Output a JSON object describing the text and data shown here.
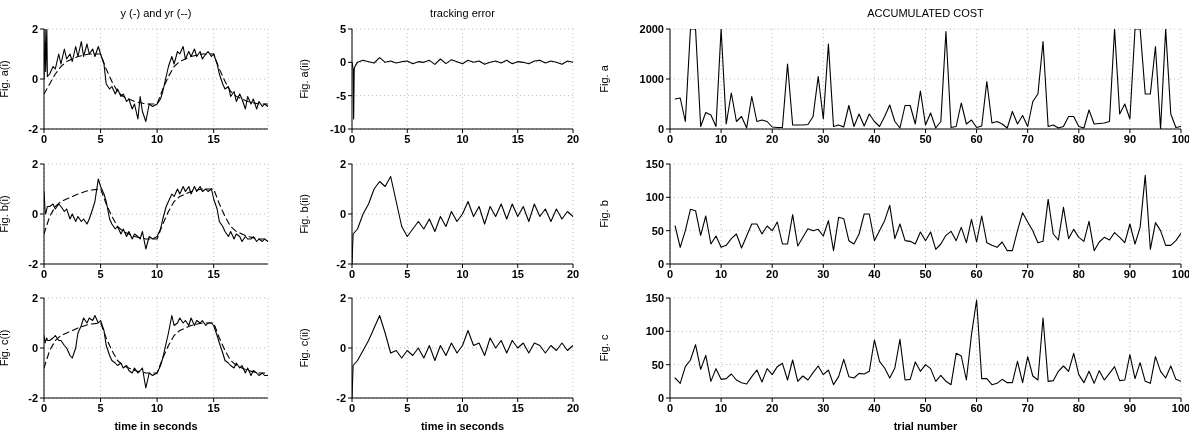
{
  "chart_data": [
    {
      "type": "line",
      "title": "y (-) and yr (--)",
      "ylabel": "Fig. a(i)",
      "xlim": [
        0,
        19.8
      ],
      "xticks": [
        0,
        5,
        10,
        15
      ],
      "ylim": [
        -2,
        2
      ],
      "yticks": [
        -2,
        0,
        2
      ],
      "grid": true,
      "series": [
        {
          "color": "#000000",
          "line_style": "solid",
          "x": [
            0,
            0.1,
            0.15,
            0.25,
            0.3,
            0.5,
            0.8,
            1,
            1.3,
            1.5,
            1.8,
            2,
            2.3,
            2.5,
            2.8,
            3,
            3.3,
            3.5,
            3.8,
            4,
            4.3,
            4.5,
            4.8,
            5,
            5.3,
            5.5,
            5.8,
            6,
            6.3,
            6.5,
            6.8,
            7,
            7.3,
            7.5,
            7.8,
            8,
            8.3,
            8.5,
            8.7,
            9,
            9.3,
            9.6,
            10,
            10.3,
            10.5,
            10.8,
            11,
            11.3,
            11.5,
            11.8,
            12,
            12.3,
            12.5,
            12.8,
            13,
            13.3,
            13.5,
            13.8,
            14,
            14.3,
            14.5,
            14.8,
            15,
            15.3,
            15.5,
            15.8,
            16,
            16.3,
            16.5,
            16.8,
            17,
            17.3,
            17.5,
            17.8,
            18,
            18.3,
            18.5,
            18.8,
            19,
            19.3,
            19.5,
            19.8
          ],
          "values": [
            0,
            2,
            0.3,
            2,
            0.1,
            0.2,
            0.5,
            0.4,
            1.0,
            0.6,
            1.2,
            0.8,
            1.0,
            0.7,
            1.3,
            0.9,
            1.5,
            0.9,
            1.4,
            1.0,
            1.2,
            0.9,
            1.3,
            1.0,
            0.6,
            -0.2,
            -0.4,
            -0.3,
            -0.6,
            -0.4,
            -0.7,
            -0.6,
            -0.9,
            -0.8,
            -1.2,
            -1.0,
            -1.6,
            -0.7,
            -1.3,
            -1.7,
            -1.0,
            -1.1,
            -1.0,
            -0.8,
            -0.5,
            0.1,
            0.5,
            0.9,
            0.6,
            1.1,
            1.0,
            1.3,
            0.8,
            1.1,
            0.9,
            1.2,
            0.9,
            1.1,
            0.8,
            1.0,
            1.1,
            0.9,
            1.0,
            0.6,
            0.2,
            -0.2,
            -0.4,
            -0.3,
            -0.7,
            -0.5,
            -0.9,
            -0.6,
            -0.8,
            -1.2,
            -0.7,
            -1.0,
            -0.8,
            -1.2,
            -0.9,
            -1.1,
            -1.0,
            -1.1
          ]
        },
        {
          "color": "#000000",
          "line_style": "dashed",
          "x": [
            0,
            0.5,
            1,
            1.5,
            2,
            3,
            4,
            5,
            5.5,
            6,
            6.5,
            7,
            8,
            9,
            10,
            10.5,
            11,
            11.5,
            12,
            13,
            14,
            15,
            15.5,
            16,
            16.5,
            17,
            18,
            19,
            19.8
          ],
          "values": [
            -0.6,
            -0.2,
            0.2,
            0.5,
            0.7,
            0.9,
            1.0,
            1.0,
            0.4,
            -0.1,
            -0.5,
            -0.7,
            -0.9,
            -1.0,
            -1.0,
            -0.4,
            0.1,
            0.5,
            0.7,
            0.9,
            1.0,
            1.0,
            0.4,
            -0.1,
            -0.5,
            -0.7,
            -0.9,
            -1.0,
            -1.0
          ]
        }
      ]
    },
    {
      "type": "line",
      "title": "tracking error",
      "ylabel": "Fig. a(ii)",
      "xlim": [
        0,
        20
      ],
      "xticks": [
        0,
        5,
        10,
        15,
        20
      ],
      "ylim": [
        -10,
        5
      ],
      "yticks": [
        -10,
        -5,
        0,
        5
      ],
      "grid": true,
      "series": [
        {
          "color": "#000000",
          "x": [
            0,
            0.1,
            0.15,
            0.2,
            0.3,
            0.5,
            1,
            1.5,
            2,
            2.5,
            3,
            3.5,
            4,
            4.5,
            5,
            5.5,
            6,
            6.5,
            7,
            7.5,
            8,
            8.5,
            9,
            9.5,
            10,
            10.5,
            11,
            11.5,
            12,
            12.5,
            13,
            13.5,
            14,
            14.5,
            15,
            15.5,
            16,
            16.5,
            17,
            17.5,
            18,
            18.5,
            19,
            19.5,
            20
          ],
          "values": [
            0,
            -1,
            -8.5,
            -1,
            -0.5,
            0.0,
            0.3,
            0.1,
            -0.1,
            0.7,
            0.0,
            0.2,
            -0.1,
            0.1,
            0.2,
            -0.2,
            0.1,
            0.0,
            0.3,
            -0.3,
            0.5,
            -0.2,
            0.4,
            0.1,
            -0.2,
            0.3,
            0.0,
            0.2,
            -0.3,
            0.0,
            0.2,
            -0.1,
            0.3,
            -0.2,
            0.1,
            0.0,
            -0.2,
            0.2,
            0.3,
            -0.1,
            0.2,
            0.0,
            -0.3,
            0.2,
            0.0
          ]
        }
      ]
    },
    {
      "type": "line",
      "title": "ACCUMULATED COST",
      "ylabel": "Fig. a",
      "xlim": [
        0,
        100
      ],
      "xticks": [
        0,
        10,
        20,
        30,
        40,
        50,
        60,
        70,
        80,
        90,
        100
      ],
      "ylim": [
        0,
        2000
      ],
      "yticks": [
        0,
        1000,
        2000
      ],
      "grid": true,
      "x": [
        1,
        2,
        3,
        4,
        5,
        6,
        7,
        8,
        9,
        10,
        11,
        12,
        13,
        14,
        15,
        16,
        17,
        18,
        19,
        20,
        21,
        22,
        23,
        24,
        25,
        26,
        27,
        28,
        29,
        30,
        31,
        32,
        33,
        34,
        35,
        36,
        37,
        38,
        39,
        40,
        41,
        42,
        43,
        44,
        45,
        46,
        47,
        48,
        49,
        50,
        51,
        52,
        53,
        54,
        55,
        56,
        57,
        58,
        59,
        60,
        61,
        62,
        63,
        64,
        65,
        66,
        67,
        68,
        69,
        70,
        71,
        72,
        73,
        74,
        75,
        76,
        77,
        78,
        79,
        80,
        81,
        82,
        83,
        84,
        85,
        86,
        87,
        88,
        89,
        90,
        91,
        92,
        93,
        94,
        95,
        96,
        97,
        98,
        99,
        100
      ],
      "series": [
        {
          "color": "#000000",
          "values": [
            600,
            620,
            150,
            2000,
            2000,
            50,
            330,
            280,
            50,
            2000,
            100,
            720,
            150,
            250,
            20,
            650,
            150,
            180,
            150,
            40,
            30,
            30,
            1300,
            80,
            80,
            80,
            90,
            250,
            1050,
            200,
            1700,
            50,
            80,
            40,
            470,
            50,
            300,
            60,
            300,
            150,
            50,
            250,
            480,
            150,
            20,
            470,
            470,
            100,
            760,
            80,
            320,
            20,
            150,
            1950,
            30,
            50,
            520,
            100,
            180,
            30,
            60,
            950,
            120,
            150,
            100,
            20,
            350,
            100,
            270,
            50,
            550,
            700,
            1750,
            50,
            80,
            20,
            50,
            250,
            250,
            50,
            20,
            380,
            100,
            110,
            120,
            150,
            2000,
            300,
            500,
            200,
            2000,
            2000,
            700,
            700,
            1650,
            0,
            2000,
            300,
            30,
            50
          ]
        }
      ]
    },
    {
      "type": "line",
      "ylabel": "Fig. b(i)",
      "xlim": [
        0,
        19.8
      ],
      "xticks": [
        0,
        5,
        10,
        15
      ],
      "ylim": [
        -2,
        2
      ],
      "yticks": [
        -2,
        0,
        2
      ],
      "grid": true,
      "series": [
        {
          "color": "#000000",
          "line_style": "solid",
          "x": [
            0,
            0.1,
            0.15,
            0.25,
            0.3,
            0.5,
            0.8,
            1,
            1.3,
            1.5,
            1.8,
            2,
            2.3,
            2.5,
            2.8,
            3,
            3.3,
            3.5,
            3.8,
            4,
            4.3,
            4.5,
            4.8,
            5,
            5.3,
            5.5,
            5.8,
            6,
            6.3,
            6.5,
            6.8,
            7,
            7.3,
            7.5,
            7.8,
            8,
            8.3,
            8.5,
            8.7,
            9,
            9.3,
            9.6,
            10,
            10.3,
            10.5,
            10.8,
            11,
            11.3,
            11.5,
            11.8,
            12,
            12.3,
            12.5,
            12.8,
            13,
            13.3,
            13.5,
            13.8,
            14,
            14.3,
            14.5,
            14.8,
            15,
            15.3,
            15.5,
            15.8,
            16,
            16.3,
            16.5,
            16.8,
            17,
            17.3,
            17.5,
            17.8,
            18,
            18.3,
            18.5,
            18.8,
            19,
            19.3,
            19.5,
            19.8
          ],
          "values": [
            0.9,
            0.1,
            0.0,
            0.2,
            0.3,
            0.3,
            0.4,
            0.2,
            0.4,
            0.3,
            0.1,
            0.2,
            -0.2,
            0.0,
            -0.3,
            -0.1,
            -0.3,
            -0.2,
            -0.4,
            -0.2,
            0.2,
            0.5,
            1.4,
            1.1,
            0.8,
            0.5,
            -0.2,
            -0.4,
            -0.6,
            -0.5,
            -0.8,
            -0.6,
            -0.9,
            -0.7,
            -1.0,
            -0.8,
            -0.9,
            -1.0,
            -0.7,
            -1.4,
            -0.9,
            -1.0,
            -0.9,
            -0.6,
            -0.2,
            0.3,
            0.5,
            0.8,
            0.7,
            1.0,
            0.8,
            1.1,
            0.9,
            1.1,
            0.8,
            1.1,
            0.9,
            1.1,
            0.9,
            1.0,
            0.9,
            1.0,
            0.6,
            0.2,
            -0.3,
            -0.5,
            -0.7,
            -0.9,
            -0.7,
            -1.0,
            -0.8,
            -0.9,
            -1.1,
            -0.9,
            -1.0,
            -1.0,
            -0.9,
            -1.1,
            -1.0,
            -1.1,
            -1.0,
            -1.1
          ]
        },
        {
          "color": "#000000",
          "line_style": "dashed",
          "x": [
            0,
            0.5,
            1,
            1.5,
            2,
            3,
            4,
            5,
            5.5,
            6,
            6.5,
            7,
            8,
            9,
            10,
            10.5,
            11,
            11.5,
            12,
            13,
            14,
            15,
            15.5,
            16,
            16.5,
            17,
            18,
            19,
            19.8
          ],
          "values": [
            -0.8,
            -0.1,
            0.3,
            0.5,
            0.6,
            0.8,
            0.95,
            1.0,
            0.4,
            -0.1,
            -0.5,
            -0.7,
            -0.9,
            -1.0,
            -1.0,
            -0.4,
            0.1,
            0.5,
            0.7,
            0.9,
            1.0,
            1.0,
            0.4,
            -0.1,
            -0.5,
            -0.7,
            -0.9,
            -1.0,
            -1.0
          ]
        }
      ]
    },
    {
      "type": "line",
      "ylabel": "Fig. b(ii)",
      "xlim": [
        0,
        20
      ],
      "xticks": [
        0,
        5,
        10,
        15,
        20
      ],
      "ylim": [
        -2,
        2
      ],
      "yticks": [
        -2,
        0,
        2
      ],
      "grid": true,
      "series": [
        {
          "color": "#000000",
          "x": [
            0,
            0.1,
            0.5,
            1,
            1.5,
            2,
            2.5,
            3,
            3.5,
            4,
            4.5,
            5,
            5.5,
            6,
            6.5,
            7,
            7.5,
            8,
            8.5,
            9,
            9.5,
            10,
            10.5,
            11,
            11.5,
            12,
            12.5,
            13,
            13.5,
            14,
            14.5,
            15,
            15.5,
            16,
            16.5,
            17,
            17.5,
            18,
            18.5,
            19,
            19.5,
            20
          ],
          "values": [
            -2,
            -0.8,
            -0.6,
            0.0,
            0.4,
            1.0,
            1.3,
            1.1,
            1.5,
            0.5,
            -0.5,
            -0.9,
            -0.6,
            -0.3,
            -0.6,
            -0.2,
            -0.7,
            -0.1,
            -0.5,
            0.1,
            -0.3,
            0.0,
            0.5,
            -0.1,
            0.3,
            -0.4,
            0.3,
            -0.1,
            0.4,
            -0.2,
            0.4,
            -0.1,
            0.3,
            -0.3,
            0.4,
            -0.1,
            0.2,
            -0.3,
            0.2,
            -0.2,
            0.1,
            -0.1
          ]
        }
      ]
    },
    {
      "type": "line",
      "ylabel": "Fig. b",
      "xlim": [
        0,
        100
      ],
      "xticks": [
        0,
        10,
        20,
        30,
        40,
        50,
        60,
        70,
        80,
        90,
        100
      ],
      "ylim": [
        0,
        150
      ],
      "yticks": [
        0,
        50,
        100,
        150
      ],
      "grid": true,
      "x": [
        1,
        2,
        3,
        4,
        5,
        6,
        7,
        8,
        9,
        10,
        11,
        12,
        13,
        14,
        15,
        16,
        17,
        18,
        19,
        20,
        21,
        22,
        23,
        24,
        25,
        26,
        27,
        28,
        29,
        30,
        31,
        32,
        33,
        34,
        35,
        36,
        37,
        38,
        39,
        40,
        41,
        42,
        43,
        44,
        45,
        46,
        47,
        48,
        49,
        50,
        51,
        52,
        53,
        54,
        55,
        56,
        57,
        58,
        59,
        60,
        61,
        62,
        63,
        64,
        65,
        66,
        67,
        68,
        69,
        70,
        71,
        72,
        73,
        74,
        75,
        76,
        77,
        78,
        79,
        80,
        81,
        82,
        83,
        84,
        85,
        86,
        87,
        88,
        89,
        90,
        91,
        92,
        93,
        94,
        95,
        96,
        97,
        98,
        99,
        100
      ],
      "series": [
        {
          "color": "#000000",
          "values": [
            57,
            25,
            50,
            82,
            80,
            43,
            72,
            30,
            42,
            25,
            28,
            38,
            45,
            24,
            42,
            60,
            60,
            45,
            57,
            50,
            63,
            30,
            30,
            74,
            27,
            40,
            53,
            50,
            52,
            42,
            65,
            20,
            70,
            68,
            35,
            30,
            45,
            75,
            75,
            35,
            50,
            65,
            88,
            38,
            60,
            35,
            34,
            30,
            48,
            35,
            48,
            22,
            30,
            43,
            49,
            35,
            55,
            32,
            67,
            33,
            72,
            32,
            28,
            25,
            33,
            20,
            20,
            50,
            77,
            63,
            50,
            32,
            34,
            97,
            45,
            36,
            85,
            38,
            52,
            40,
            34,
            64,
            20,
            33,
            40,
            36,
            47,
            40,
            32,
            60,
            30,
            55,
            133,
            22,
            62,
            50,
            28,
            28,
            35,
            46
          ]
        }
      ]
    },
    {
      "type": "line",
      "ylabel": "Fig. c(i)",
      "xlabel": "time in seconds",
      "xlim": [
        0,
        19.8
      ],
      "xticks": [
        0,
        5,
        10,
        15
      ],
      "ylim": [
        -2,
        2
      ],
      "yticks": [
        -2,
        0,
        2
      ],
      "grid": true,
      "series": [
        {
          "color": "#000000",
          "line_style": "solid",
          "x": [
            0,
            0.1,
            0.15,
            0.25,
            0.3,
            0.5,
            0.8,
            1,
            1.3,
            1.5,
            1.8,
            2,
            2.3,
            2.5,
            2.8,
            3,
            3.3,
            3.5,
            3.8,
            4,
            4.3,
            4.5,
            4.8,
            5,
            5.3,
            5.5,
            5.8,
            6,
            6.3,
            6.5,
            6.8,
            7,
            7.3,
            7.5,
            7.8,
            8,
            8.3,
            8.5,
            8.7,
            9,
            9.3,
            9.6,
            10,
            10.3,
            10.5,
            10.8,
            11,
            11.3,
            11.5,
            11.8,
            12,
            12.3,
            12.5,
            12.8,
            13,
            13.3,
            13.5,
            13.8,
            14,
            14.3,
            14.5,
            14.8,
            15,
            15.3,
            15.5,
            15.8,
            16,
            16.3,
            16.5,
            16.8,
            17,
            17.3,
            17.5,
            17.8,
            18,
            18.3,
            18.5,
            18.8,
            19,
            19.3,
            19.5,
            19.8
          ],
          "values": [
            0.5,
            0.2,
            0.3,
            0.4,
            0.3,
            0.3,
            0.4,
            0.5,
            0.3,
            0.3,
            0.1,
            0.0,
            -0.3,
            -0.4,
            0.0,
            0.6,
            0.9,
            1.2,
            1.0,
            1.2,
            1.1,
            1.3,
            1.0,
            1.1,
            0.7,
            0.1,
            -0.3,
            -0.5,
            -0.6,
            -0.7,
            -0.6,
            -0.8,
            -0.7,
            -0.9,
            -1.0,
            -0.8,
            -1.0,
            -0.9,
            -0.8,
            -1.6,
            -1.0,
            -1.1,
            -1.0,
            -0.7,
            -0.4,
            0.2,
            0.6,
            1.3,
            0.9,
            1.0,
            1.2,
            1.0,
            1.1,
            0.9,
            1.2,
            0.9,
            1.1,
            1.0,
            1.1,
            0.9,
            1.0,
            1.0,
            0.9,
            0.5,
            0.2,
            -0.2,
            -0.5,
            -0.6,
            -0.7,
            -0.8,
            -0.6,
            -0.8,
            -0.7,
            -1.0,
            -0.8,
            -1.1,
            -0.9,
            -1.0,
            -1.1,
            -1.0,
            -1.1,
            -1.1
          ]
        },
        {
          "color": "#000000",
          "line_style": "dashed",
          "x": [
            0,
            0.5,
            1,
            1.5,
            2,
            3,
            4,
            5,
            5.5,
            6,
            6.5,
            7,
            8,
            9,
            10,
            10.5,
            11,
            11.5,
            12,
            13,
            14,
            15,
            15.5,
            16,
            16.5,
            17,
            18,
            19,
            19.8
          ],
          "values": [
            -0.8,
            -0.1,
            0.3,
            0.5,
            0.6,
            0.8,
            0.95,
            1.0,
            0.4,
            -0.1,
            -0.5,
            -0.7,
            -0.9,
            -1.0,
            -1.0,
            -0.4,
            0.1,
            0.5,
            0.7,
            0.9,
            1.0,
            1.0,
            0.4,
            -0.1,
            -0.5,
            -0.7,
            -0.9,
            -1.0,
            -1.0
          ]
        }
      ]
    },
    {
      "type": "line",
      "ylabel": "Fig. c(ii)",
      "xlabel": "time in seconds",
      "xlim": [
        0,
        20
      ],
      "xticks": [
        0,
        5,
        10,
        15,
        20
      ],
      "ylim": [
        -2,
        2
      ],
      "yticks": [
        -2,
        0,
        2
      ],
      "grid": true,
      "series": [
        {
          "color": "#000000",
          "x": [
            0,
            0.1,
            0.5,
            1,
            1.5,
            2,
            2.5,
            3,
            3.5,
            4,
            4.5,
            5,
            5.5,
            6,
            6.5,
            7,
            7.5,
            8,
            8.5,
            9,
            9.5,
            10,
            10.5,
            11,
            11.5,
            12,
            12.5,
            13,
            13.5,
            14,
            14.5,
            15,
            15.5,
            16,
            16.5,
            17,
            17.5,
            18,
            18.5,
            19,
            19.5,
            20
          ],
          "values": [
            -2,
            -0.7,
            -0.5,
            -0.1,
            0.3,
            0.8,
            1.3,
            0.6,
            -0.2,
            -0.1,
            -0.4,
            -0.1,
            -0.3,
            0.0,
            -0.4,
            0.1,
            -0.5,
            0.1,
            -0.3,
            0.2,
            -0.2,
            0.1,
            0.7,
            0.1,
            0.2,
            -0.3,
            0.4,
            0.0,
            0.3,
            -0.2,
            0.3,
            0.0,
            0.2,
            -0.2,
            0.2,
            0.1,
            -0.2,
            0.1,
            -0.1,
            0.2,
            -0.1,
            0.1
          ]
        }
      ]
    },
    {
      "type": "line",
      "ylabel": "Fig. c",
      "xlabel": "trial number",
      "xlim": [
        0,
        100
      ],
      "xticks": [
        0,
        10,
        20,
        30,
        40,
        50,
        60,
        70,
        80,
        90,
        100
      ],
      "ylim": [
        0,
        150
      ],
      "yticks": [
        0,
        50,
        100,
        150
      ],
      "grid": true,
      "x": [
        1,
        2,
        3,
        4,
        5,
        6,
        7,
        8,
        9,
        10,
        11,
        12,
        13,
        14,
        15,
        16,
        17,
        18,
        19,
        20,
        21,
        22,
        23,
        24,
        25,
        26,
        27,
        28,
        29,
        30,
        31,
        32,
        33,
        34,
        35,
        36,
        37,
        38,
        39,
        40,
        41,
        42,
        43,
        44,
        45,
        46,
        47,
        48,
        49,
        50,
        51,
        52,
        53,
        54,
        55,
        56,
        57,
        58,
        59,
        60,
        61,
        62,
        63,
        64,
        65,
        66,
        67,
        68,
        69,
        70,
        71,
        72,
        73,
        74,
        75,
        76,
        77,
        78,
        79,
        80,
        81,
        82,
        83,
        84,
        85,
        86,
        87,
        88,
        89,
        90,
        91,
        92,
        93,
        94,
        95,
        96,
        97,
        98,
        99,
        100
      ],
      "series": [
        {
          "color": "#000000",
          "values": [
            30,
            22,
            47,
            57,
            80,
            43,
            64,
            25,
            44,
            28,
            29,
            36,
            27,
            23,
            21,
            32,
            42,
            24,
            44,
            35,
            47,
            52,
            27,
            57,
            25,
            33,
            27,
            38,
            48,
            35,
            42,
            20,
            32,
            58,
            32,
            30,
            37,
            36,
            40,
            87,
            55,
            45,
            30,
            45,
            88,
            27,
            28,
            54,
            40,
            50,
            44,
            25,
            34,
            25,
            20,
            67,
            63,
            27,
            95,
            147,
            29,
            29,
            20,
            22,
            28,
            23,
            23,
            55,
            23,
            62,
            33,
            27,
            120,
            25,
            26,
            40,
            48,
            40,
            67,
            35,
            23,
            40,
            22,
            41,
            27,
            37,
            47,
            26,
            27,
            65,
            29,
            53,
            25,
            22,
            62,
            40,
            30,
            48,
            28,
            25
          ]
        }
      ]
    }
  ]
}
